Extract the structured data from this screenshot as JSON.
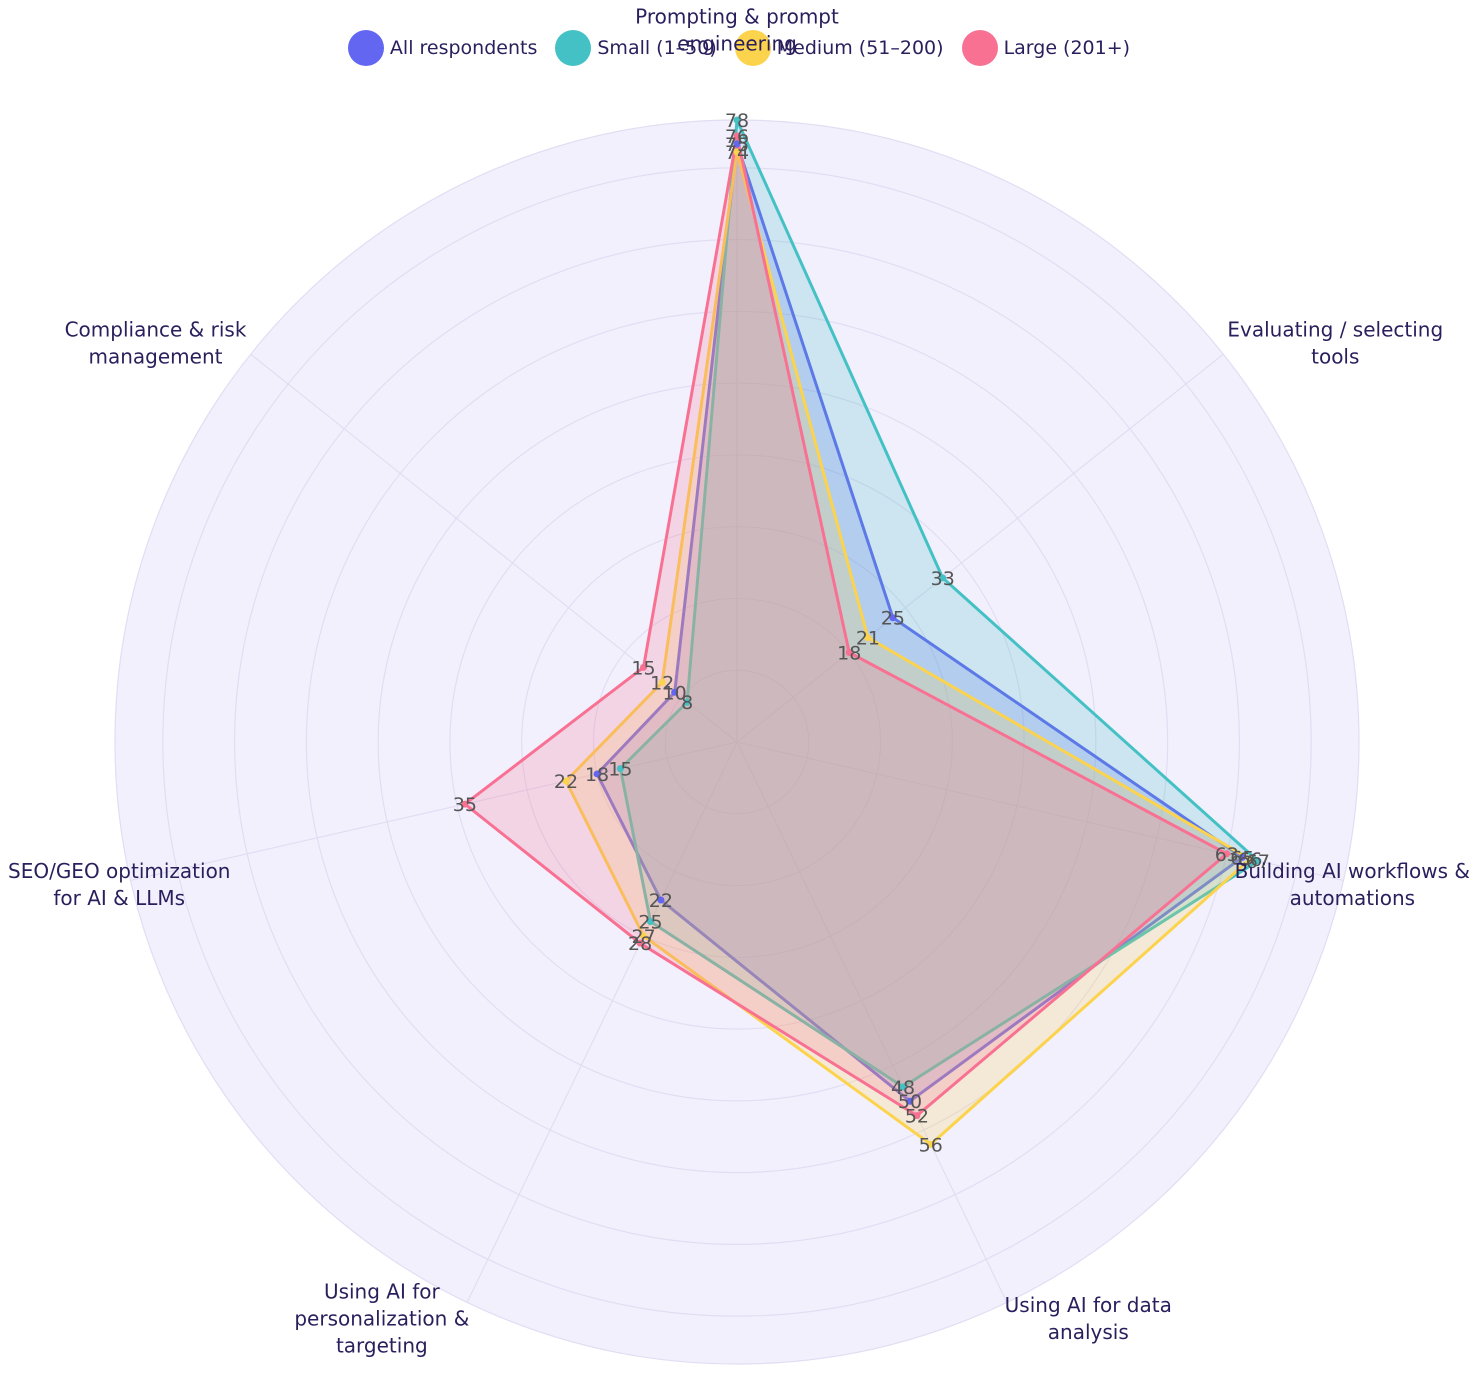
{
  "chart_data": {
    "type": "radar",
    "axes": [
      "Prompting & prompt engineering",
      "Evaluating / selecting tools",
      "Building AI workflows & automations",
      "Using AI for data analysis",
      "Using AI for personalization & targeting",
      "SEO/GEO optimization for AI & LLMs",
      "Compliance & risk management"
    ],
    "axis_label_lines": [
      [
        "Prompting & prompt",
        "engineering"
      ],
      [
        "Evaluating / selecting",
        "tools"
      ],
      [
        "Building AI workflows &",
        "automations"
      ],
      [
        "Using AI for data",
        "analysis"
      ],
      [
        "Using AI for",
        "personalization &",
        "targeting"
      ],
      [
        "SEO/GEO optimization",
        "for AI & LLMs"
      ],
      [
        "Compliance & risk",
        "management"
      ]
    ],
    "rmax": 78,
    "series": [
      {
        "name": "All respondents",
        "color": "#6366f1",
        "values": [
          75,
          25,
          65,
          50,
          22,
          18,
          10
        ]
      },
      {
        "name": "Small (1–50)",
        "color": "#44c1c5",
        "values": [
          78,
          33,
          67,
          48,
          25,
          15,
          8
        ]
      },
      {
        "name": "Medium (51–200)",
        "color": "#fcd34d",
        "values": [
          74,
          21,
          66,
          56,
          27,
          22,
          12
        ]
      },
      {
        "name": "Large (201+)",
        "color": "#f87193",
        "values": [
          76,
          18,
          63,
          52,
          28,
          35,
          15
        ]
      }
    ]
  }
}
